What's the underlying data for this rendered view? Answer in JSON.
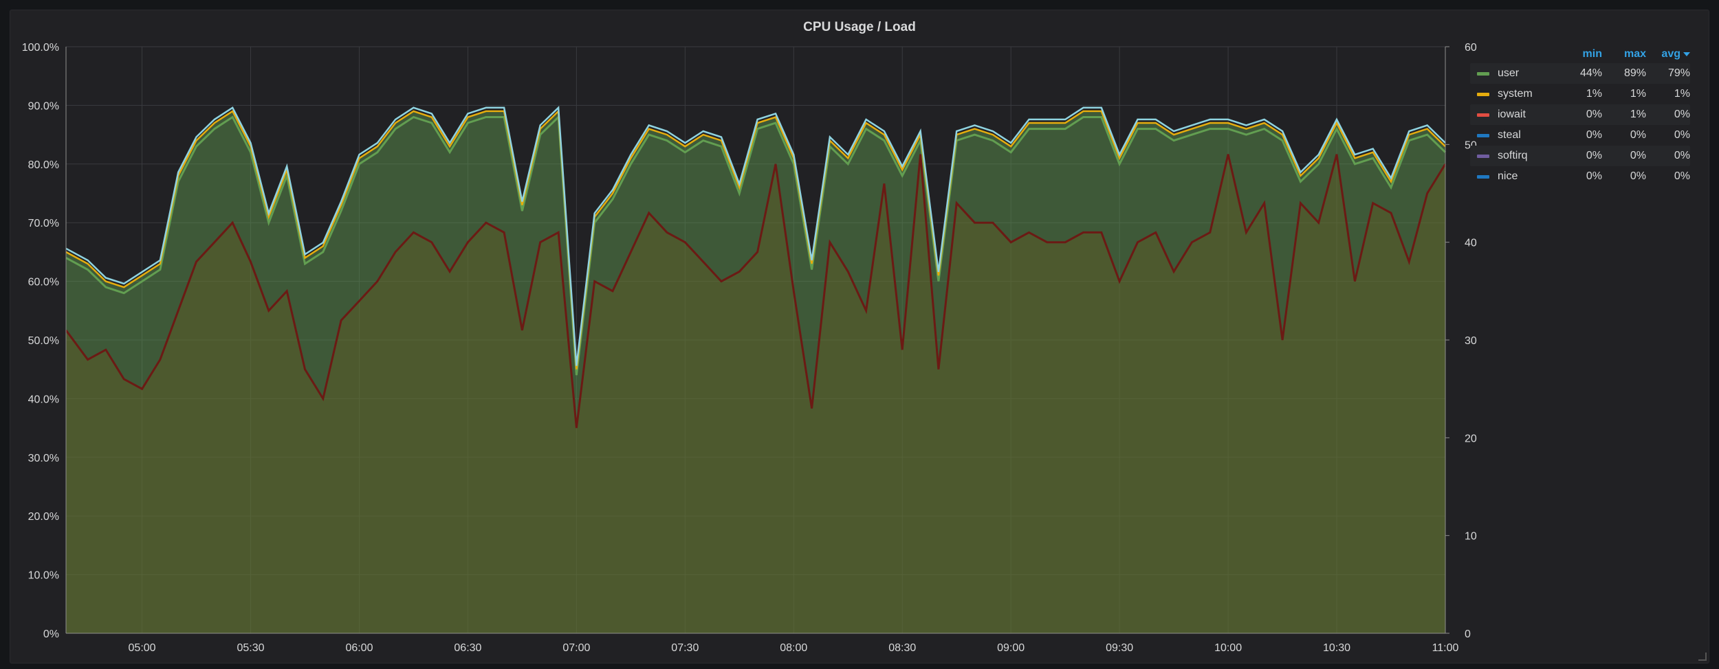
{
  "panel": {
    "title": "CPU Usage / Load"
  },
  "legend": {
    "headers": {
      "min": "min",
      "max": "max",
      "avg": "avg"
    },
    "rows": [
      {
        "name": "user",
        "color": "#629e51",
        "min": "44%",
        "max": "89%",
        "avg": "79%"
      },
      {
        "name": "system",
        "color": "#e5ac0e",
        "min": "1%",
        "max": "1%",
        "avg": "1%"
      },
      {
        "name": "iowait",
        "color": "#e24d42",
        "min": "0%",
        "max": "1%",
        "avg": "0%"
      },
      {
        "name": "steal",
        "color": "#1f78c1",
        "min": "0%",
        "max": "0%",
        "avg": "0%"
      },
      {
        "name": "softirq",
        "color": "#705da0",
        "min": "0%",
        "max": "0%",
        "avg": "0%"
      },
      {
        "name": "nice",
        "color": "#1f78c1",
        "min": "0%",
        "max": "0%",
        "avg": "0%"
      }
    ]
  },
  "chart_data": {
    "type": "area",
    "title": "CPU Usage / Load",
    "xlabel": "",
    "ylabel": "",
    "x_ticks": [
      "05:00",
      "05:30",
      "06:00",
      "06:30",
      "07:00",
      "07:30",
      "08:00",
      "08:30",
      "09:00",
      "09:30",
      "10:00",
      "10:30",
      "11:00"
    ],
    "x_range": [
      "04:39",
      "11:00"
    ],
    "y_left": {
      "ticks": [
        "0%",
        "10.0%",
        "20.0%",
        "30.0%",
        "40.0%",
        "50.0%",
        "60.0%",
        "70.0%",
        "80.0%",
        "90.0%",
        "100.0%"
      ],
      "range": [
        0,
        100
      ]
    },
    "y_right": {
      "ticks": [
        "0",
        "10",
        "20",
        "30",
        "40",
        "50",
        "60"
      ],
      "range": [
        0,
        60
      ]
    },
    "grid": true,
    "legend_position": "top-right",
    "colors": {
      "user": "#629e51",
      "system": "#e5ac0e",
      "total_line": "#8fd3e0",
      "load_line": "#6b1a14",
      "grid": "#3a3b3f",
      "text": "#d8d9da"
    },
    "series": [
      {
        "name": "user",
        "axis": "left",
        "stacked": true,
        "x": [
          "04:39",
          "04:45",
          "04:50",
          "04:55",
          "05:00",
          "05:05",
          "05:10",
          "05:15",
          "05:20",
          "05:25",
          "05:30",
          "05:35",
          "05:40",
          "05:45",
          "05:50",
          "05:55",
          "06:00",
          "06:05",
          "06:10",
          "06:15",
          "06:20",
          "06:25",
          "06:30",
          "06:35",
          "06:40",
          "06:45",
          "06:50",
          "06:55",
          "07:00",
          "07:05",
          "07:10",
          "07:15",
          "07:20",
          "07:25",
          "07:30",
          "07:35",
          "07:40",
          "07:45",
          "07:50",
          "07:55",
          "08:00",
          "08:05",
          "08:10",
          "08:15",
          "08:20",
          "08:25",
          "08:30",
          "08:35",
          "08:40",
          "08:45",
          "08:50",
          "08:55",
          "09:00",
          "09:05",
          "09:10",
          "09:15",
          "09:20",
          "09:25",
          "09:30",
          "09:35",
          "09:40",
          "09:45",
          "09:50",
          "09:55",
          "10:00",
          "10:05",
          "10:10",
          "10:15",
          "10:20",
          "10:25",
          "10:30",
          "10:35",
          "10:40",
          "10:45",
          "10:50",
          "10:55",
          "11:00"
        ],
        "values": [
          64,
          62,
          59,
          58,
          60,
          62,
          77,
          83,
          86,
          88,
          82,
          70,
          78,
          63,
          65,
          72,
          80,
          82,
          86,
          88,
          87,
          82,
          87,
          88,
          88,
          72,
          85,
          88,
          44,
          70,
          74,
          80,
          85,
          84,
          82,
          84,
          83,
          75,
          86,
          87,
          80,
          62,
          83,
          80,
          86,
          84,
          78,
          84,
          60,
          84,
          85,
          84,
          82,
          86,
          86,
          86,
          88,
          88,
          80,
          86,
          86,
          84,
          85,
          86,
          86,
          85,
          86,
          84,
          77,
          80,
          86,
          80,
          81,
          76,
          84,
          85,
          82
        ]
      },
      {
        "name": "system",
        "axis": "left",
        "stacked": true,
        "values": [
          1,
          1,
          1,
          1,
          1,
          1,
          1,
          1,
          1,
          1,
          1,
          1,
          1,
          1,
          1,
          1,
          1,
          1,
          1,
          1,
          1,
          1,
          1,
          1,
          1,
          1,
          1,
          1,
          1,
          1,
          1,
          1,
          1,
          1,
          1,
          1,
          1,
          1,
          1,
          1,
          1,
          1,
          1,
          1,
          1,
          1,
          1,
          1,
          1,
          1,
          1,
          1,
          1,
          1,
          1,
          1,
          1,
          1,
          1,
          1,
          1,
          1,
          1,
          1,
          1,
          1,
          1,
          1,
          1,
          1,
          1,
          1,
          1,
          1,
          1,
          1,
          1
        ]
      },
      {
        "name": "load",
        "axis": "right",
        "values": [
          31,
          28,
          29,
          26,
          25,
          28,
          33,
          38,
          40,
          42,
          38,
          33,
          35,
          27,
          24,
          32,
          34,
          36,
          39,
          41,
          40,
          37,
          40,
          42,
          41,
          31,
          40,
          41,
          21,
          36,
          35,
          39,
          43,
          41,
          40,
          38,
          36,
          37,
          39,
          48,
          35,
          23,
          40,
          37,
          33,
          46,
          29,
          49,
          27,
          44,
          42,
          42,
          40,
          41,
          40,
          40,
          41,
          41,
          36,
          40,
          41,
          37,
          40,
          41,
          49,
          41,
          44,
          30,
          44,
          42,
          49,
          36,
          44,
          43,
          38,
          45,
          48
        ]
      }
    ]
  }
}
